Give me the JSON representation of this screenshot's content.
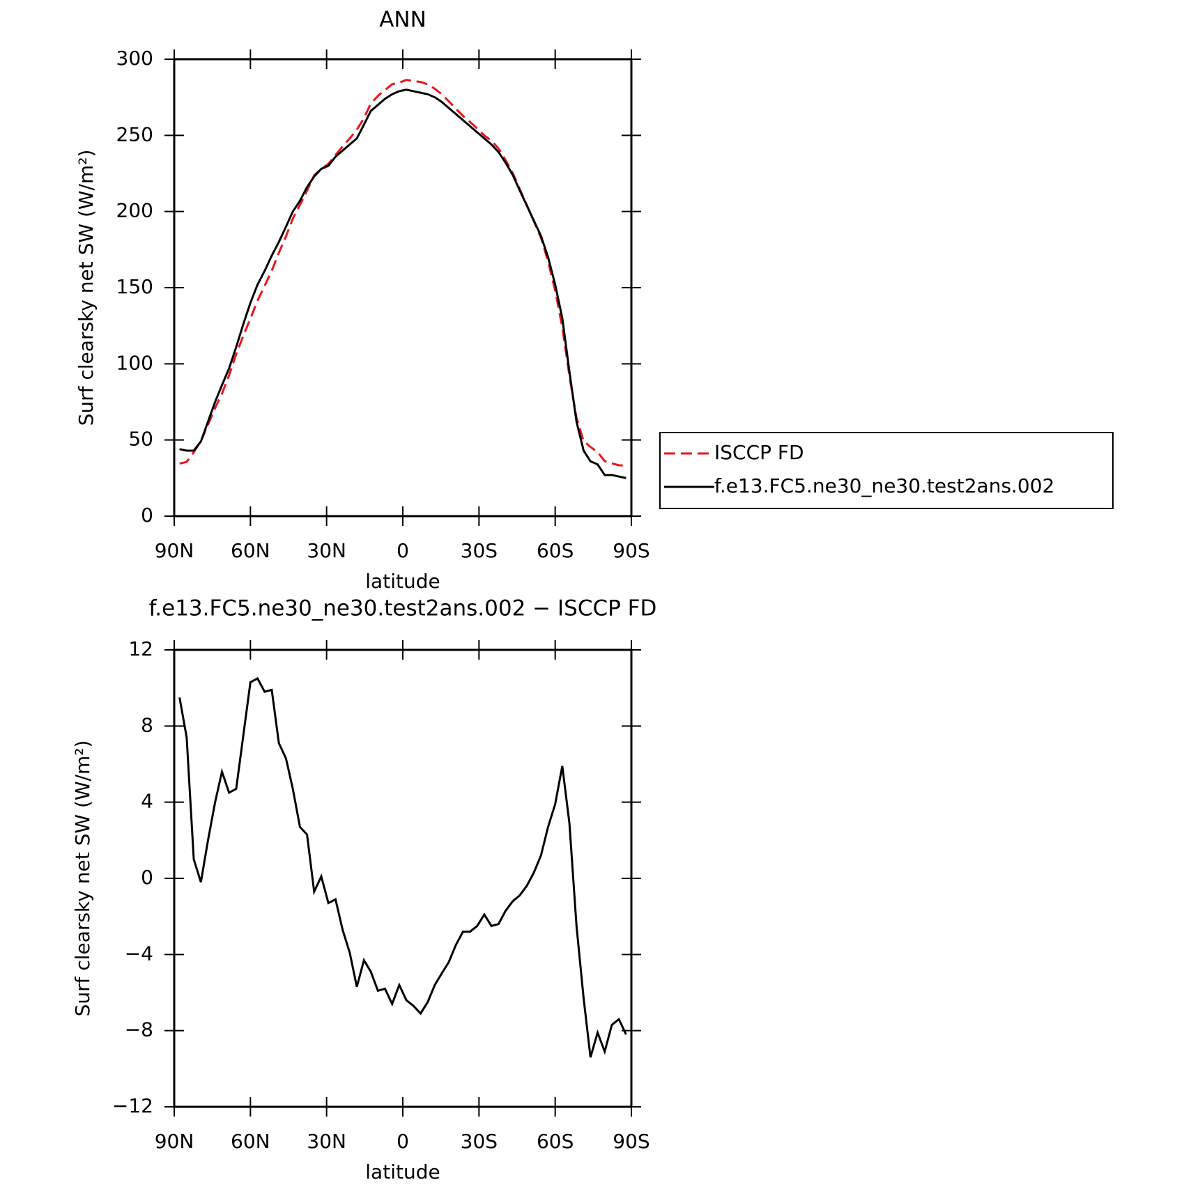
{
  "chart_data": [
    {
      "type": "line",
      "title": "ANN",
      "xlabel": "latitude",
      "ylabel": "Surf clearsky net SW (W/m²)",
      "x": [
        87.9,
        85.1,
        82.3,
        79.5,
        76.7,
        73.9,
        71.2,
        68.4,
        65.6,
        62.8,
        60.0,
        57.2,
        54.4,
        51.6,
        48.8,
        46.0,
        43.3,
        40.5,
        37.7,
        34.9,
        32.1,
        29.3,
        26.5,
        23.7,
        20.9,
        18.1,
        15.3,
        12.6,
        9.8,
        7.0,
        4.2,
        1.4,
        -1.4,
        -4.2,
        -7.0,
        -9.8,
        -12.6,
        -15.3,
        -18.1,
        -20.9,
        -23.7,
        -26.5,
        -29.3,
        -32.1,
        -34.9,
        -37.7,
        -40.5,
        -43.3,
        -46.0,
        -48.8,
        -51.6,
        -54.4,
        -57.2,
        -60.0,
        -62.8,
        -65.6,
        -68.4,
        -71.2,
        -73.9,
        -76.7,
        -79.5,
        -82.3,
        -85.1,
        -87.9
      ],
      "series": [
        {
          "name": "ISCCP FD",
          "color": "#e8151b",
          "dash": true,
          "values": [
            34.5,
            35.6,
            42,
            49.2,
            60,
            71,
            80.4,
            92.5,
            106.3,
            118.5,
            129.7,
            141.5,
            151.2,
            161.1,
            172.9,
            183.7,
            195.3,
            204.3,
            213.7,
            223.7,
            227.9,
            231.3,
            237.1,
            242.7,
            247.9,
            253.7,
            261.3,
            270.9,
            275.9,
            279.8,
            283.6,
            284.6,
            286.4,
            285.7,
            285.1,
            283.5,
            280.6,
            277,
            272.4,
            267.5,
            262.8,
            258.8,
            254.5,
            249.9,
            246.5,
            241.4,
            233.7,
            225.2,
            214.9,
            204.4,
            193.7,
            182.8,
            167.3,
            148.1,
            124.1,
            92.1,
            64.5,
            49.3,
            45.4,
            42.1,
            36.1,
            34.7,
            33.4,
            33.2
          ]
        },
        {
          "name": "f.e13.FC5.ne30_ne30.test2ans.002",
          "color": "#000000",
          "dash": false,
          "values": [
            44,
            43,
            43,
            49,
            62,
            75,
            86,
            97,
            111,
            126,
            140,
            152,
            161,
            171,
            180,
            190,
            200,
            207,
            216,
            223,
            228,
            230,
            236,
            240,
            244,
            248,
            257,
            266,
            270,
            274,
            277,
            279,
            280,
            279,
            278,
            277,
            275,
            272,
            268,
            264,
            260,
            256,
            252,
            248,
            244,
            239,
            232,
            224,
            214,
            204,
            194,
            184,
            170,
            152,
            130,
            95,
            62,
            43,
            36,
            34,
            27,
            27,
            26,
            25
          ]
        }
      ],
      "xlim": [
        90,
        -90
      ],
      "xticks": [
        {
          "value": 90,
          "label": "90N"
        },
        {
          "value": 60,
          "label": "60N"
        },
        {
          "value": 30,
          "label": "30N"
        },
        0,
        {
          "value": -30,
          "label": "30S"
        },
        {
          "value": -60,
          "label": "60S"
        },
        {
          "value": -90,
          "label": "90S"
        }
      ],
      "ylim": [
        0,
        300
      ],
      "yticks": [
        0,
        50,
        100,
        150,
        200,
        250,
        300
      ],
      "legend": "right"
    },
    {
      "type": "line",
      "title": "f.e13.FC5.ne30_ne30.test2ans.002 − ISCCP FD",
      "xlabel": "latitude",
      "ylabel": "Surf clearsky net SW (W/m²)",
      "x": [
        87.9,
        85.1,
        82.3,
        79.5,
        76.7,
        73.9,
        71.2,
        68.4,
        65.6,
        62.8,
        60.0,
        57.2,
        54.4,
        51.6,
        48.8,
        46.0,
        43.3,
        40.5,
        37.7,
        34.9,
        32.1,
        29.3,
        26.5,
        23.7,
        20.9,
        18.1,
        15.3,
        12.6,
        9.8,
        7.0,
        4.2,
        1.4,
        -1.4,
        -4.2,
        -7.0,
        -9.8,
        -12.6,
        -15.3,
        -18.1,
        -20.9,
        -23.7,
        -26.5,
        -29.3,
        -32.1,
        -34.9,
        -37.7,
        -40.5,
        -43.3,
        -46.0,
        -48.8,
        -51.6,
        -54.4,
        -57.2,
        -60.0,
        -62.8,
        -65.6,
        -68.4,
        -71.2,
        -73.9,
        -76.7,
        -79.5,
        -82.3,
        -85.1,
        -87.9
      ],
      "series": [
        {
          "color": "#000000",
          "dash": false,
          "values": [
            9.5,
            7.4,
            1.0,
            -0.2,
            2.0,
            4.0,
            5.6,
            4.5,
            4.7,
            7.5,
            10.3,
            10.5,
            9.8,
            9.9,
            7.1,
            6.3,
            4.7,
            2.7,
            2.3,
            -0.7,
            0.1,
            -1.3,
            -1.1,
            -2.7,
            -3.9,
            -5.7,
            -4.3,
            -4.9,
            -5.9,
            -5.8,
            -6.6,
            -5.6,
            -6.4,
            -6.7,
            -7.1,
            -6.5,
            -5.6,
            -5.0,
            -4.4,
            -3.5,
            -2.8,
            -2.8,
            -2.5,
            -1.9,
            -2.5,
            -2.4,
            -1.7,
            -1.2,
            -0.9,
            -0.4,
            0.3,
            1.2,
            2.7,
            3.9,
            5.9,
            2.9,
            -2.5,
            -6.3,
            -9.4,
            -8.1,
            -9.1,
            -7.7,
            -7.4,
            -8.2
          ]
        }
      ],
      "xlim": [
        90,
        -90
      ],
      "xticks": [
        {
          "value": 90,
          "label": "90N"
        },
        {
          "value": 60,
          "label": "60N"
        },
        {
          "value": 30,
          "label": "30N"
        },
        0,
        {
          "value": -30,
          "label": "30S"
        },
        {
          "value": -60,
          "label": "60S"
        },
        {
          "value": -90,
          "label": "90S"
        }
      ],
      "ylim": [
        -12,
        12
      ],
      "yticks": [
        {
          "value": -12,
          "label": "−12"
        },
        {
          "value": -8,
          "label": "−8"
        },
        {
          "value": -4,
          "label": "−4"
        },
        0,
        4,
        8,
        12
      ]
    }
  ]
}
